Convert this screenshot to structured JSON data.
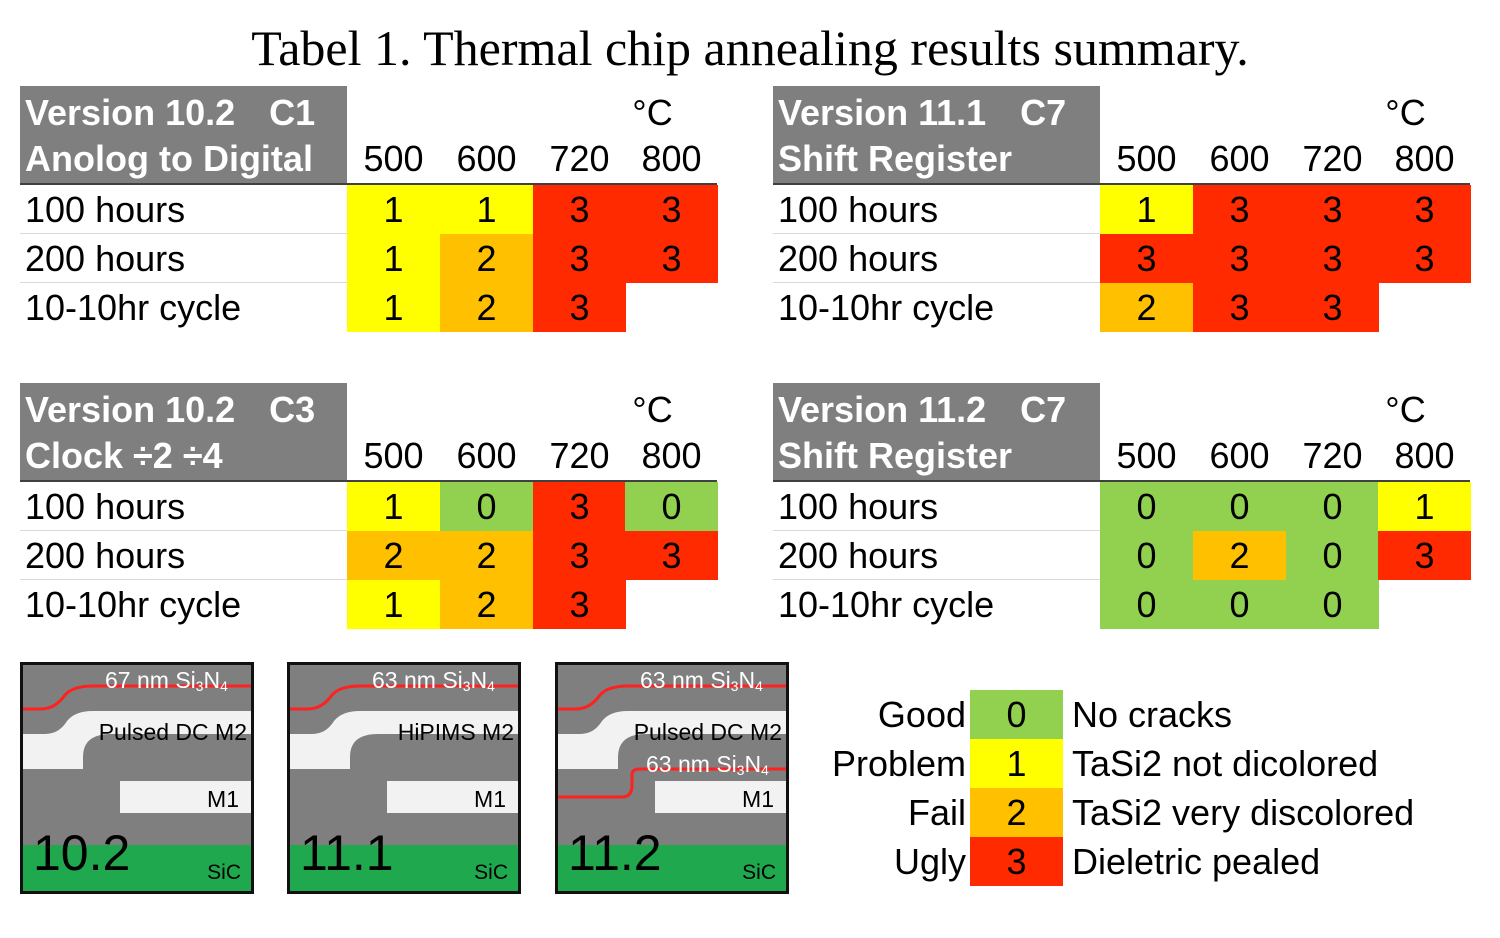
{
  "title": "Tabel 1. Thermal chip annealing results summary.",
  "colors": {
    "header_bg": "#7f7f7f",
    "score_0": "#92d050",
    "score_1": "#ffff00",
    "score_2": "#ffc000",
    "score_3": "#ff2a00",
    "sic": "#1fa84d",
    "nitride_line": "#ff2020"
  },
  "tables": [
    {
      "version": "Version 10.2",
      "chip": "C1",
      "circuit": "Anolog to Digital",
      "unit": "°C",
      "temps": [
        "500",
        "600",
        "720",
        "800"
      ],
      "rows": [
        {
          "label": "100 hours",
          "values": [
            "1",
            "1",
            "3",
            "3"
          ]
        },
        {
          "label": "200 hours",
          "values": [
            "1",
            "2",
            "3",
            "3"
          ]
        },
        {
          "label": "10-10hr cycle",
          "values": [
            "1",
            "2",
            "3",
            ""
          ]
        }
      ]
    },
    {
      "version": "Version 11.1",
      "chip": "C7",
      "circuit": "Shift Register",
      "unit": "°C",
      "temps": [
        "500",
        "600",
        "720",
        "800"
      ],
      "rows": [
        {
          "label": "100 hours",
          "values": [
            "1",
            "3",
            "3",
            "3"
          ]
        },
        {
          "label": "200 hours",
          "values": [
            "3",
            "3",
            "3",
            "3"
          ]
        },
        {
          "label": "10-10hr cycle",
          "values": [
            "2",
            "3",
            "3",
            ""
          ]
        }
      ]
    },
    {
      "version": "Version 10.2",
      "chip": "C3",
      "circuit": "Clock ÷2 ÷4",
      "unit": "°C",
      "temps": [
        "500",
        "600",
        "720",
        "800"
      ],
      "rows": [
        {
          "label": "100 hours",
          "values": [
            "1",
            "0",
            "3",
            "0"
          ]
        },
        {
          "label": "200 hours",
          "values": [
            "2",
            "2",
            "3",
            "3"
          ]
        },
        {
          "label": "10-10hr cycle",
          "values": [
            "1",
            "2",
            "3",
            ""
          ]
        }
      ]
    },
    {
      "version": "Version 11.2",
      "chip": "C7",
      "circuit": "Shift Register",
      "unit": "°C",
      "temps": [
        "500",
        "600",
        "720",
        "800"
      ],
      "rows": [
        {
          "label": "100 hours",
          "values": [
            "0",
            "0",
            "0",
            "1"
          ]
        },
        {
          "label": "200 hours",
          "values": [
            "0",
            "2",
            "0",
            "3"
          ]
        },
        {
          "label": "10-10hr cycle",
          "values": [
            "0",
            "0",
            "0",
            ""
          ]
        }
      ]
    }
  ],
  "diagrams": [
    {
      "version": "10.2",
      "top_nitride": "67 nm Si",
      "m2": "Pulsed DC M2",
      "m1": "M1",
      "substrate": "SiC",
      "mid_nitride": ""
    },
    {
      "version": "11.1",
      "top_nitride": "63 nm Si",
      "m2": "HiPIMS M2",
      "m1": "M1",
      "substrate": "SiC",
      "mid_nitride": ""
    },
    {
      "version": "11.2",
      "top_nitride": "63 nm Si",
      "m2": "Pulsed DC M2",
      "m1": "M1",
      "substrate": "SiC",
      "mid_nitride": "63 nm Si"
    }
  ],
  "nitride_subscripts": {
    "si": "3",
    "n_symbol": "N",
    "n": "4"
  },
  "legend": [
    {
      "name": "Good",
      "code": "0",
      "description": "No cracks"
    },
    {
      "name": "Problem",
      "code": "1",
      "description": "TaSi2 not dicolored"
    },
    {
      "name": "Fail",
      "code": "2",
      "description": "TaSi2 very discolored"
    },
    {
      "name": "Ugly",
      "code": "3",
      "description": "Dieletric pealed"
    }
  ]
}
